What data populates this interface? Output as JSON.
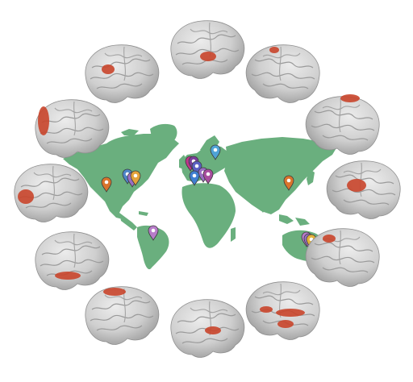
{
  "figure": {
    "colors": {
      "background": "#ffffff",
      "land": "#6aaf7e",
      "brain": "#cfcfcf",
      "brain_shade": "#a9a9a9",
      "brain_outline": "#8f8f8f",
      "activation": "#c9452b"
    },
    "map": {
      "pins": [
        {
          "id": "usa-west",
          "color": "#d9742c"
        },
        {
          "id": "usa-east-1",
          "color": "#4f86c9"
        },
        {
          "id": "usa-east-2",
          "color": "#9a6fc4"
        },
        {
          "id": "usa-east-3",
          "color": "#e3a23a"
        },
        {
          "id": "brazil",
          "color": "#b77cc9"
        },
        {
          "id": "uk",
          "color": "#c0348c"
        },
        {
          "id": "europe-1",
          "color": "#7a3f9c"
        },
        {
          "id": "europe-2",
          "color": "#5a5fc2"
        },
        {
          "id": "europe-3",
          "color": "#9a6fc4"
        },
        {
          "id": "europe-4",
          "color": "#3f7fd0"
        },
        {
          "id": "europe-5",
          "color": "#a84d9e"
        },
        {
          "id": "scandinavia",
          "color": "#4fa3d6"
        },
        {
          "id": "china",
          "color": "#d9742c"
        },
        {
          "id": "australia-1",
          "color": "#b77cc9"
        },
        {
          "id": "australia-2",
          "color": "#9a6fc4"
        },
        {
          "id": "australia-3",
          "color": "#e3b23a"
        }
      ]
    },
    "brains": [
      {
        "id": "brain-top",
        "activations": 1
      },
      {
        "id": "brain-top-right",
        "activations": 1
      },
      {
        "id": "brain-right-upper",
        "activations": 1
      },
      {
        "id": "brain-right",
        "activations": 1
      },
      {
        "id": "brain-right-lower",
        "activations": 1
      },
      {
        "id": "brain-bottom-right",
        "activations": 3
      },
      {
        "id": "brain-bottom",
        "activations": 1
      },
      {
        "id": "brain-bottom-left",
        "activations": 1
      },
      {
        "id": "brain-left-lower",
        "activations": 1
      },
      {
        "id": "brain-left",
        "activations": 1
      },
      {
        "id": "brain-left-upper",
        "activations": 1
      },
      {
        "id": "brain-top-left",
        "activations": 1
      }
    ]
  }
}
